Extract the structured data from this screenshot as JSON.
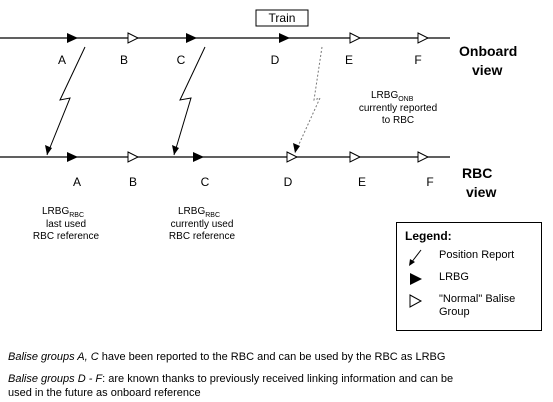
{
  "train_label": "Train",
  "onboard_view_label": [
    "Onboard",
    "view"
  ],
  "rbc_view_label": [
    "RBC",
    "view"
  ],
  "onboard_balise_labels": [
    "A",
    "B",
    "C",
    "D",
    "E",
    "F"
  ],
  "rbc_balise_labels": [
    "A",
    "B",
    "C",
    "D",
    "E",
    "F"
  ],
  "lrbg_onb_note": [
    "LRBG",
    "ONB",
    "currently reported",
    "to RBC"
  ],
  "lrbg_rbc_last_note": [
    "LRBG",
    "RBC",
    "last used",
    "RBC reference"
  ],
  "lrbg_rbc_current_note": [
    "LRBG",
    "RBC",
    "currently used",
    "RBC reference"
  ],
  "legend": {
    "title": "Legend:",
    "position_report": "Position Report",
    "lrbg": "LRBG",
    "normal_balise": [
      "\"Normal\" Balise",
      "Group"
    ]
  },
  "caption1": {
    "italic": "Balise groups A, C",
    "rest": " have been reported to the RBC and can be used by the RBC as LRBG"
  },
  "caption2": {
    "italic": "Balise groups D - F",
    "rest": ": are known thanks to previously received linking information and can be",
    "line2": "used in the future as onboard reference"
  }
}
